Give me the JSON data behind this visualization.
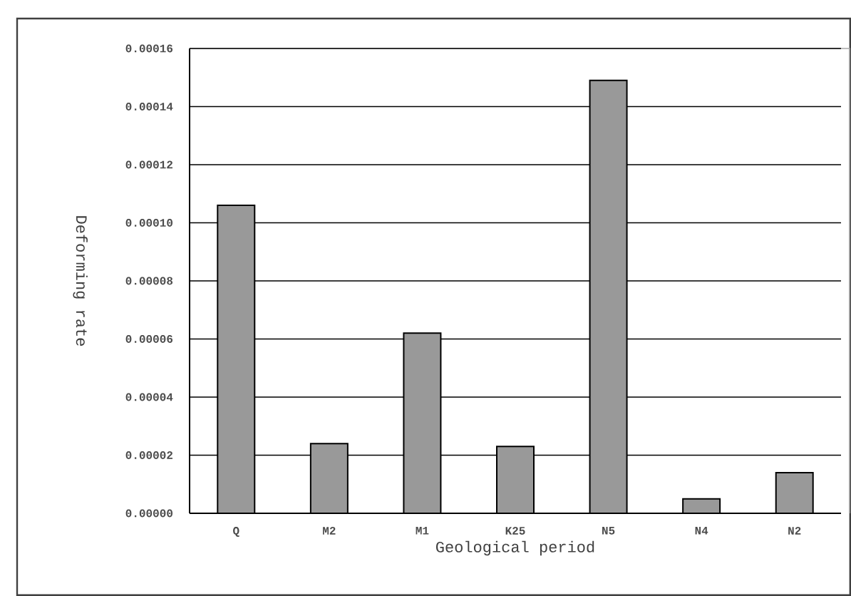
{
  "chart_data": {
    "type": "bar",
    "xlabel": "Geological period",
    "ylabel": "Deforming rate",
    "categories": [
      "Q",
      "M2",
      "M1",
      "K25",
      "N5",
      "N4",
      "N2"
    ],
    "values": [
      0.000106,
      2.4e-05,
      6.2e-05,
      2.3e-05,
      0.000149,
      5e-06,
      1.4e-05
    ],
    "color": "#999999",
    "grid": "y",
    "ylim": [
      0,
      0.00016
    ],
    "yticks": [
      {
        "value": 0,
        "label": "0.00000"
      },
      {
        "value": 2e-05,
        "label": "0.00002"
      },
      {
        "value": 4e-05,
        "label": "0.00004"
      },
      {
        "value": 6e-05,
        "label": "0.00006"
      },
      {
        "value": 8e-05,
        "label": "0.00008"
      },
      {
        "value": 0.0001,
        "label": "0.00010"
      },
      {
        "value": 0.00012,
        "label": "0.00012"
      },
      {
        "value": 0.00014,
        "label": "0.00014"
      },
      {
        "value": 0.00016,
        "label": "0.00016"
      }
    ]
  }
}
